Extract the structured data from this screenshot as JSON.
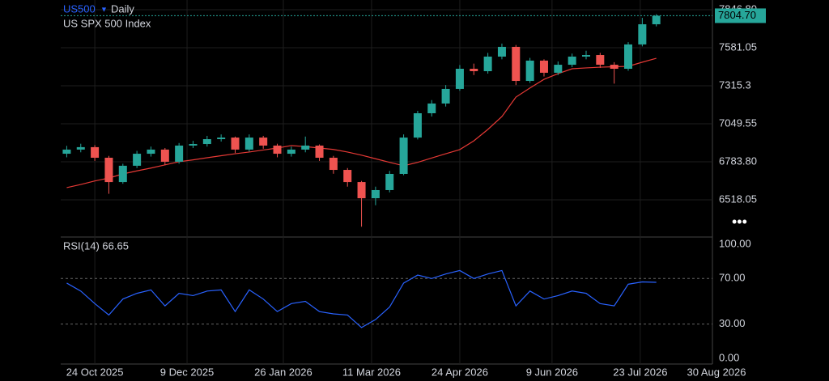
{
  "header": {
    "symbol": "US500",
    "interval": "Daily",
    "name": "US SPX 500 Index"
  },
  "chart_data": [
    {
      "type": "candlestick",
      "x": [
        "2025-10-10",
        "2025-10-17",
        "2025-10-24",
        "2025-10-31",
        "2025-11-07",
        "2025-11-14",
        "2025-11-21",
        "2025-11-28",
        "2025-12-05",
        "2025-12-12",
        "2025-12-19",
        "2025-12-26",
        "2026-01-02",
        "2026-01-09",
        "2026-01-16",
        "2026-01-23",
        "2026-01-30",
        "2026-02-06",
        "2026-02-13",
        "2026-02-20",
        "2026-02-27",
        "2026-03-06",
        "2026-03-13",
        "2026-03-20",
        "2026-03-27",
        "2026-04-03",
        "2026-04-10",
        "2026-04-17",
        "2026-04-24",
        "2026-05-01",
        "2026-05-08",
        "2026-05-15",
        "2026-05-22",
        "2026-05-29",
        "2026-06-05",
        "2026-06-12",
        "2026-06-19",
        "2026-06-26",
        "2026-07-03",
        "2026-07-10",
        "2026-07-17",
        "2026-07-24",
        "2026-07-31"
      ],
      "open": [
        6840,
        6869,
        6886,
        6812,
        6642,
        6756,
        6840,
        6869,
        6784,
        6897,
        6908,
        6942,
        6953,
        6869,
        6953,
        6897,
        6840,
        6869,
        6897,
        6812,
        6727,
        6642,
        6529,
        6586,
        6699,
        6953,
        7123,
        7191,
        7293,
        7434,
        7417,
        7519,
        7587,
        7349,
        7491,
        7406,
        7462,
        7519,
        7530,
        7462,
        7434,
        7604,
        7745
      ],
      "high": [
        6895,
        6910,
        6900,
        6825,
        6770,
        6860,
        6890,
        6880,
        6915,
        6930,
        6965,
        6975,
        6960,
        6975,
        6965,
        6910,
        6890,
        6960,
        6905,
        6825,
        6740,
        6650,
        6610,
        6720,
        6975,
        7140,
        7215,
        7320,
        7460,
        7470,
        7545,
        7610,
        7600,
        7510,
        7500,
        7485,
        7540,
        7560,
        7545,
        7480,
        7620,
        7790,
        7815
      ],
      "low": [
        6815,
        6850,
        6790,
        6560,
        6630,
        6740,
        6820,
        6760,
        6770,
        6880,
        6890,
        6925,
        6845,
        6855,
        6875,
        6815,
        6820,
        6850,
        6790,
        6700,
        6610,
        6330,
        6480,
        6570,
        6690,
        6940,
        7100,
        7170,
        7280,
        7390,
        7400,
        7500,
        7320,
        7335,
        7380,
        7390,
        7445,
        7500,
        7440,
        7330,
        7420,
        7590,
        7730
      ],
      "close": [
        6869,
        6886,
        6812,
        6642,
        6756,
        6840,
        6869,
        6784,
        6897,
        6908,
        6942,
        6953,
        6869,
        6953,
        6897,
        6840,
        6869,
        6897,
        6812,
        6727,
        6642,
        6529,
        6586,
        6699,
        6953,
        7123,
        7191,
        7293,
        7434,
        7417,
        7519,
        7587,
        7349,
        7491,
        7406,
        7462,
        7519,
        7530,
        7462,
        7434,
        7604,
        7745,
        7804.7
      ],
      "up_color": "#26a69a",
      "down_color": "#ef5350",
      "last_price_label": "7804.70",
      "ma": {
        "color": "#e53935",
        "values": [
          6603,
          6625,
          6650,
          6670,
          6699,
          6720,
          6740,
          6762,
          6784,
          6797,
          6812,
          6826,
          6840,
          6852,
          6866,
          6880,
          6897,
          6890,
          6880,
          6870,
          6852,
          6830,
          6805,
          6780,
          6756,
          6780,
          6810,
          6840,
          6869,
          6930,
          7010,
          7100,
          7236,
          7300,
          7360,
          7400,
          7434,
          7440,
          7445,
          7448,
          7451,
          7480,
          7507
        ]
      },
      "xlim": [
        "2025-10-07",
        "2026-08-30"
      ],
      "xticks": [
        {
          "value": "2025-10-24",
          "label": "24 Oct 2025"
        },
        {
          "value": "2025-12-09",
          "label": "9 Dec 2025"
        },
        {
          "value": "2026-01-26",
          "label": "26 Jan 2026"
        },
        {
          "value": "2026-03-11",
          "label": "11 Mar 2026"
        },
        {
          "value": "2026-04-24",
          "label": "24 Apr 2026"
        },
        {
          "value": "2026-06-09",
          "label": "9 Jun 2026"
        },
        {
          "value": "2026-07-23",
          "label": "23 Jul 2026"
        },
        {
          "value": "2026-08-30",
          "label": "30 Aug 2026"
        }
      ],
      "ylim": [
        6257.9,
        7914.6
      ],
      "yticks": [
        {
          "value": 7846.8,
          "label": "7846.80"
        },
        7581.05,
        7315.3,
        {
          "value": 7049.55,
          "label": "7049.55"
        },
        {
          "value": 6783.8,
          "label": "6783.80"
        },
        6518.05
      ],
      "grid": true
    },
    {
      "type": "line",
      "label": "RSI(14) 66.65",
      "color": "#2962ff",
      "values": [
        66,
        59,
        48,
        38,
        52,
        57,
        60,
        46,
        57,
        55,
        59,
        60,
        41,
        60,
        52,
        41,
        48,
        50,
        41,
        39,
        38,
        27,
        34,
        45,
        66,
        73,
        70,
        74,
        77,
        70,
        74,
        77,
        46,
        59,
        52,
        55,
        59,
        57,
        48,
        46,
        65,
        67,
        66.65
      ],
      "ylim": [
        -5,
        106.4
      ],
      "yticks": [
        {
          "value": 100,
          "label": "100.00"
        },
        {
          "value": 70,
          "label": "70.00"
        },
        {
          "value": 30,
          "label": "30.00"
        },
        {
          "value": 0,
          "label": "0.00"
        }
      ],
      "dashed_ticks": [
        70,
        30
      ]
    }
  ]
}
